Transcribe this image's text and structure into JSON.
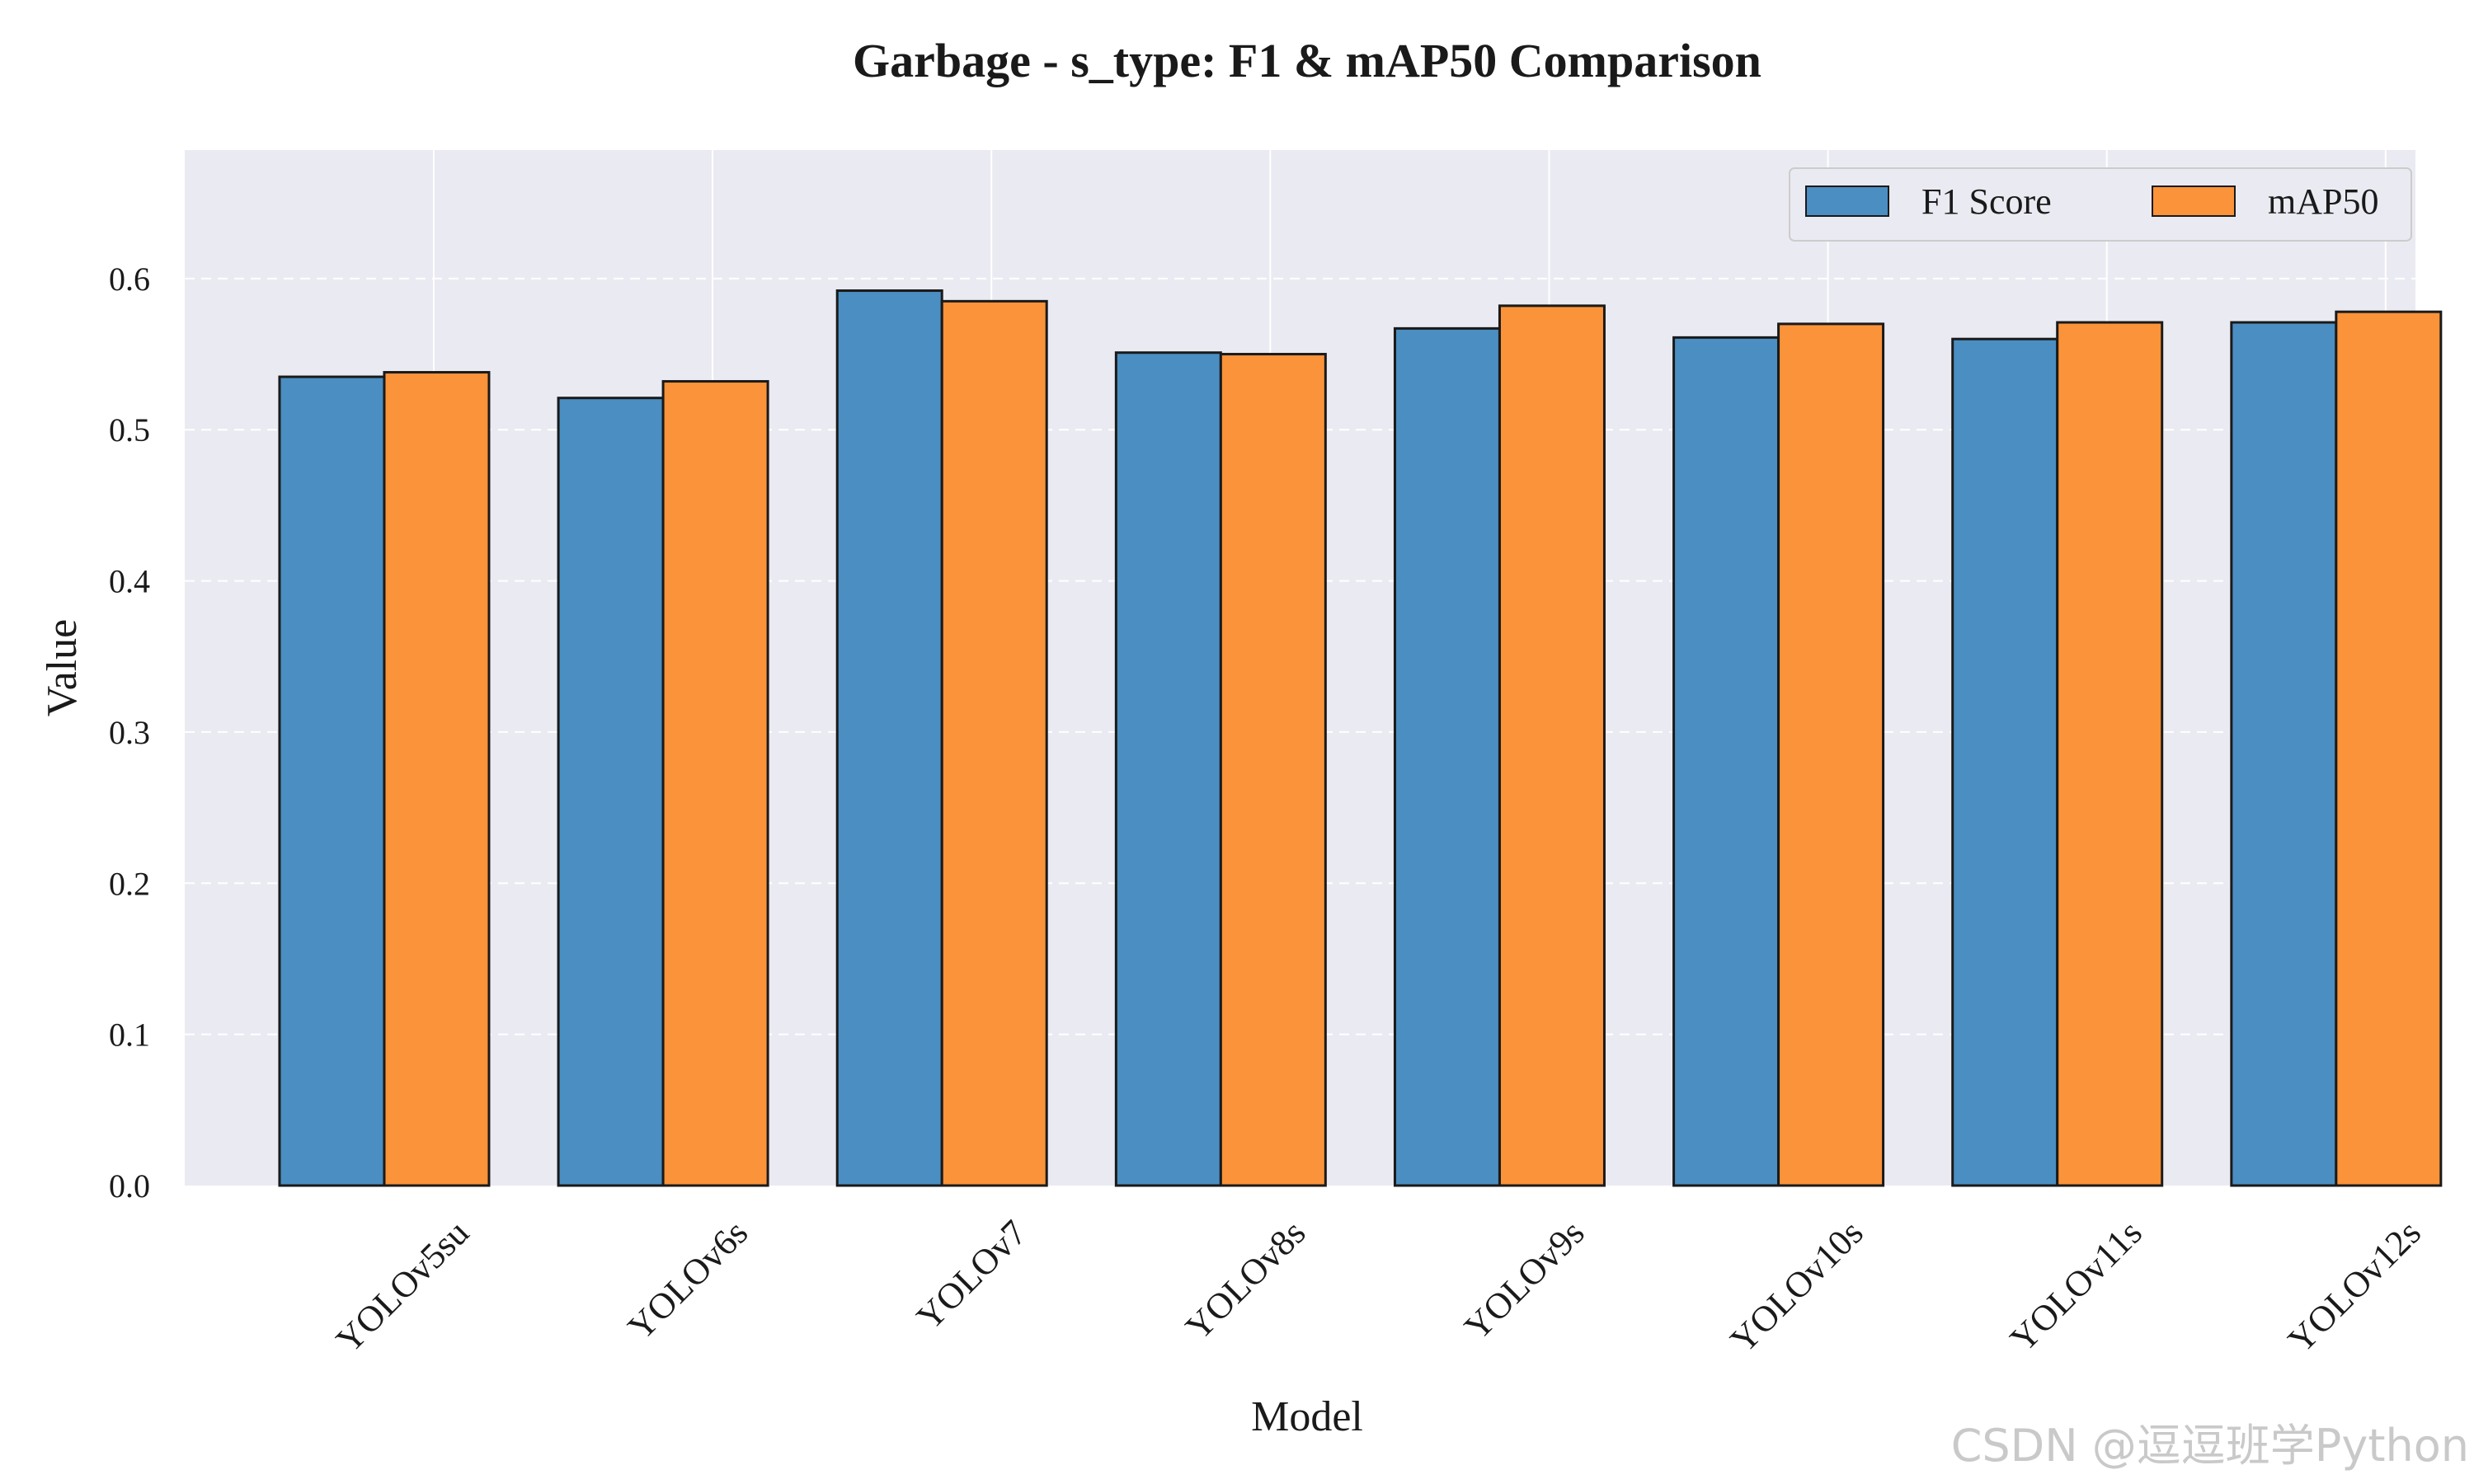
{
  "chart_data": {
    "type": "bar",
    "title": "Garbage - s_type: F1 & mAP50 Comparison",
    "xlabel": "Model",
    "ylabel": "Value",
    "categories": [
      "YOLOv5su",
      "YOLOv6s",
      "YOLOv7",
      "YOLOv8s",
      "YOLOv9s",
      "YOLOv10s",
      "YOLOv11s",
      "YOLOv12s"
    ],
    "series": [
      {
        "name": "F1 Score",
        "color": "#4a8ec2",
        "values": [
          0.535,
          0.521,
          0.592,
          0.551,
          0.567,
          0.561,
          0.56,
          0.571
        ]
      },
      {
        "name": "mAP50",
        "color": "#fa9339",
        "values": [
          0.538,
          0.532,
          0.585,
          0.55,
          0.582,
          0.57,
          0.571,
          0.578
        ]
      }
    ],
    "yticks": [
      "0.0",
      "0.1",
      "0.2",
      "0.3",
      "0.4",
      "0.5",
      "0.6"
    ],
    "ylim": [
      0,
      0.685
    ],
    "grid": true,
    "legend_position": "top-right"
  },
  "watermark": "CSDN @逗逗班学Python"
}
